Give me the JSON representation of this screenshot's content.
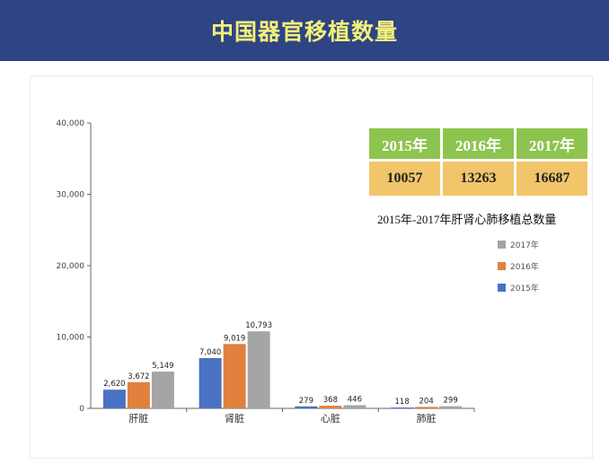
{
  "header": {
    "title": "中国器官移植数量"
  },
  "totals_table": {
    "years": [
      "2015年",
      "2016年",
      "2017年"
    ],
    "values": [
      "10057",
      "13263",
      "16687"
    ]
  },
  "legend_title": "2015年-2017年肝肾心肺移植总数量",
  "colors": {
    "banner": "#2e4483",
    "title": "#f3f07a",
    "s2015": "#4a71c4",
    "s2016": "#e0813d",
    "s2017": "#a5a5a5",
    "year_cells": "#8dc44f",
    "value_cells": "#f2c56b"
  },
  "chart_data": {
    "type": "bar",
    "categories": [
      "肝脏",
      "肾脏",
      "心脏",
      "肺脏"
    ],
    "series": [
      {
        "name": "2015年",
        "values": [
          2620,
          7040,
          279,
          118
        ]
      },
      {
        "name": "2016年",
        "values": [
          3672,
          9019,
          368,
          204
        ]
      },
      {
        "name": "2017年",
        "values": [
          5149,
          10793,
          446,
          299
        ]
      }
    ],
    "data_labels": [
      [
        "2,620",
        "7,040",
        "279",
        "118"
      ],
      [
        "3,672",
        "9,019",
        "368",
        "204"
      ],
      [
        "5,149",
        "10,793",
        "446",
        "299"
      ]
    ],
    "y_ticks": [
      0,
      10000,
      20000,
      30000,
      40000
    ],
    "y_tick_labels": [
      "0",
      "10,000",
      "20,000",
      "30,000",
      "40,000"
    ],
    "ylim": [
      0,
      40000
    ],
    "grid": false,
    "legend_position": "right",
    "legend_order": [
      "2017年",
      "2016年",
      "2015年"
    ]
  }
}
